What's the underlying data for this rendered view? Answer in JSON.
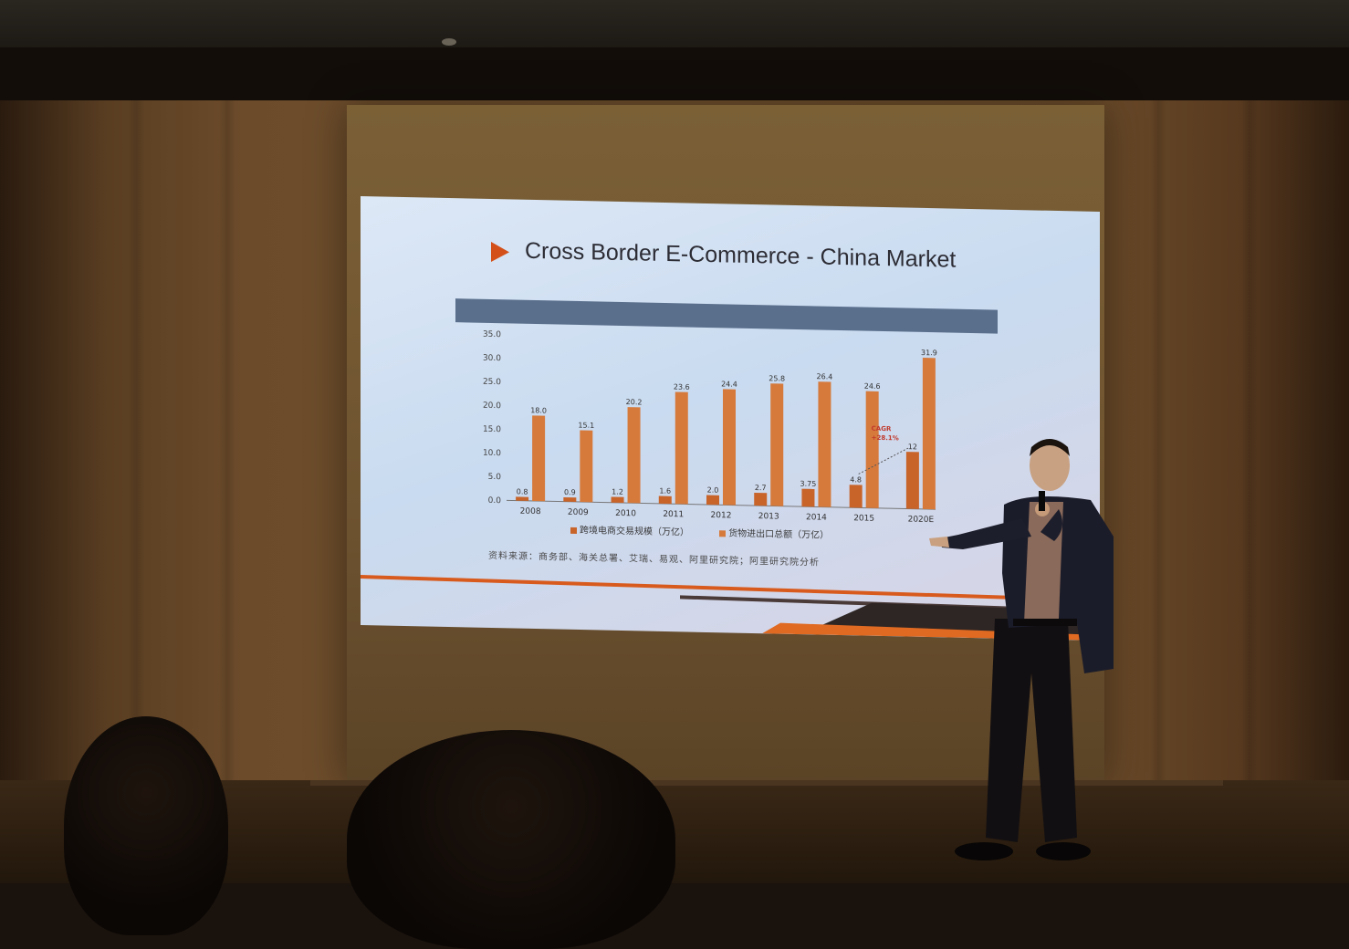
{
  "slide": {
    "title": "Cross Border E-Commerce - China Market",
    "subtitle_bar": "",
    "source_note": "资料来源：商务部、海关总署、艾瑞、易观、阿里研究院；阿里研究院分析"
  },
  "chart_data": {
    "type": "bar",
    "title": "",
    "xlabel": "",
    "ylabel": "",
    "ylim": [
      0,
      35
    ],
    "y_ticks": [
      "0.0",
      "5.0",
      "10.0",
      "15.0",
      "20.0",
      "25.0",
      "30.0",
      "35.0"
    ],
    "categories": [
      "2008",
      "2009",
      "2010",
      "2011",
      "2012",
      "2013",
      "2014",
      "2015",
      "2020E"
    ],
    "series": [
      {
        "name": "跨境电商交易规模（万亿）",
        "values": [
          0.8,
          0.9,
          1.2,
          1.6,
          2.0,
          2.7,
          3.75,
          4.8,
          12
        ],
        "labels": [
          "0.8",
          "0.9",
          "1.2",
          "1.6",
          "2.0",
          "2.7",
          "3.75",
          "4.8",
          "12"
        ],
        "color": "#c8642a"
      },
      {
        "name": "货物进出口总额（万亿）",
        "values": [
          18.0,
          15.1,
          20.2,
          23.6,
          24.4,
          25.8,
          26.4,
          24.6,
          31.9
        ],
        "labels": [
          "18.0",
          "15.1",
          "20.2",
          "23.6",
          "24.4",
          "25.8",
          "26.4",
          "24.6",
          "31.9"
        ],
        "color": "#d67a3c"
      }
    ],
    "annotation": {
      "text1": "CAGR",
      "text2": "+28.1%"
    },
    "grid": false,
    "legend": "bottom"
  }
}
